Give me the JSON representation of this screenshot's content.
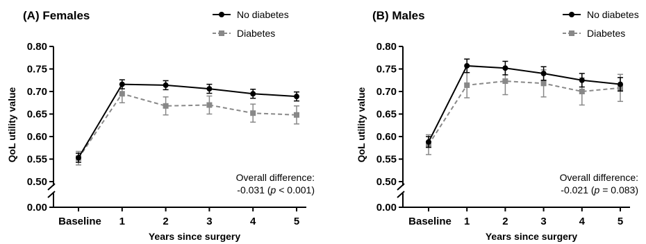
{
  "chart_data": [
    {
      "type": "line",
      "title": "(A) Females",
      "xlabel": "Years since surgery",
      "ylabel": "QoL utility value",
      "categories": [
        "Baseline",
        "1",
        "2",
        "3",
        "4",
        "5"
      ],
      "y_axis": {
        "broken": true,
        "lower_segment": [
          0.0,
          0.0
        ],
        "upper_range": [
          0.5,
          0.8
        ],
        "ticks": [
          "0.00",
          "0.50",
          "0.55",
          "0.60",
          "0.65",
          "0.70",
          "0.75",
          "0.80"
        ]
      },
      "series": [
        {
          "name": "No diabetes",
          "color": "#000000",
          "line_style": "solid",
          "marker": "circle",
          "values": [
            0.553,
            0.716,
            0.714,
            0.706,
            0.695,
            0.689
          ],
          "error": [
            0.01,
            0.01,
            0.01,
            0.01,
            0.01,
            0.01
          ]
        },
        {
          "name": "Diabetes",
          "color": "#888888",
          "line_style": "dashed",
          "marker": "square",
          "values": [
            0.552,
            0.695,
            0.668,
            0.67,
            0.652,
            0.648
          ],
          "error": [
            0.015,
            0.02,
            0.02,
            0.02,
            0.02,
            0.02
          ]
        }
      ],
      "annotation": {
        "line1": "Overall difference:",
        "line2_prefix": "-0.031 (",
        "line2_p": "p",
        "line2_suffix": " < 0.001)"
      },
      "legend_position": "top-right"
    },
    {
      "type": "line",
      "title": "(B) Males",
      "xlabel": "Years since surgery",
      "ylabel": "QoL utility value",
      "categories": [
        "Baseline",
        "1",
        "2",
        "3",
        "4",
        "5"
      ],
      "y_axis": {
        "broken": true,
        "lower_segment": [
          0.0,
          0.0
        ],
        "upper_range": [
          0.5,
          0.8
        ],
        "ticks": [
          "0.00",
          "0.50",
          "0.55",
          "0.60",
          "0.65",
          "0.70",
          "0.75",
          "0.80"
        ]
      },
      "series": [
        {
          "name": "No diabetes",
          "color": "#000000",
          "line_style": "solid",
          "marker": "circle",
          "values": [
            0.588,
            0.757,
            0.752,
            0.74,
            0.725,
            0.716
          ],
          "error": [
            0.012,
            0.015,
            0.015,
            0.015,
            0.015,
            0.015
          ]
        },
        {
          "name": "Diabetes",
          "color": "#888888",
          "line_style": "dashed",
          "marker": "square",
          "values": [
            0.582,
            0.714,
            0.723,
            0.718,
            0.7,
            0.708
          ],
          "error": [
            0.022,
            0.028,
            0.03,
            0.03,
            0.03,
            0.03
          ]
        }
      ],
      "annotation": {
        "line1": "Overall difference:",
        "line2_prefix": "-0.021 (",
        "line2_p": "p",
        "line2_suffix": " = 0.083)"
      },
      "legend_position": "top-right"
    }
  ]
}
